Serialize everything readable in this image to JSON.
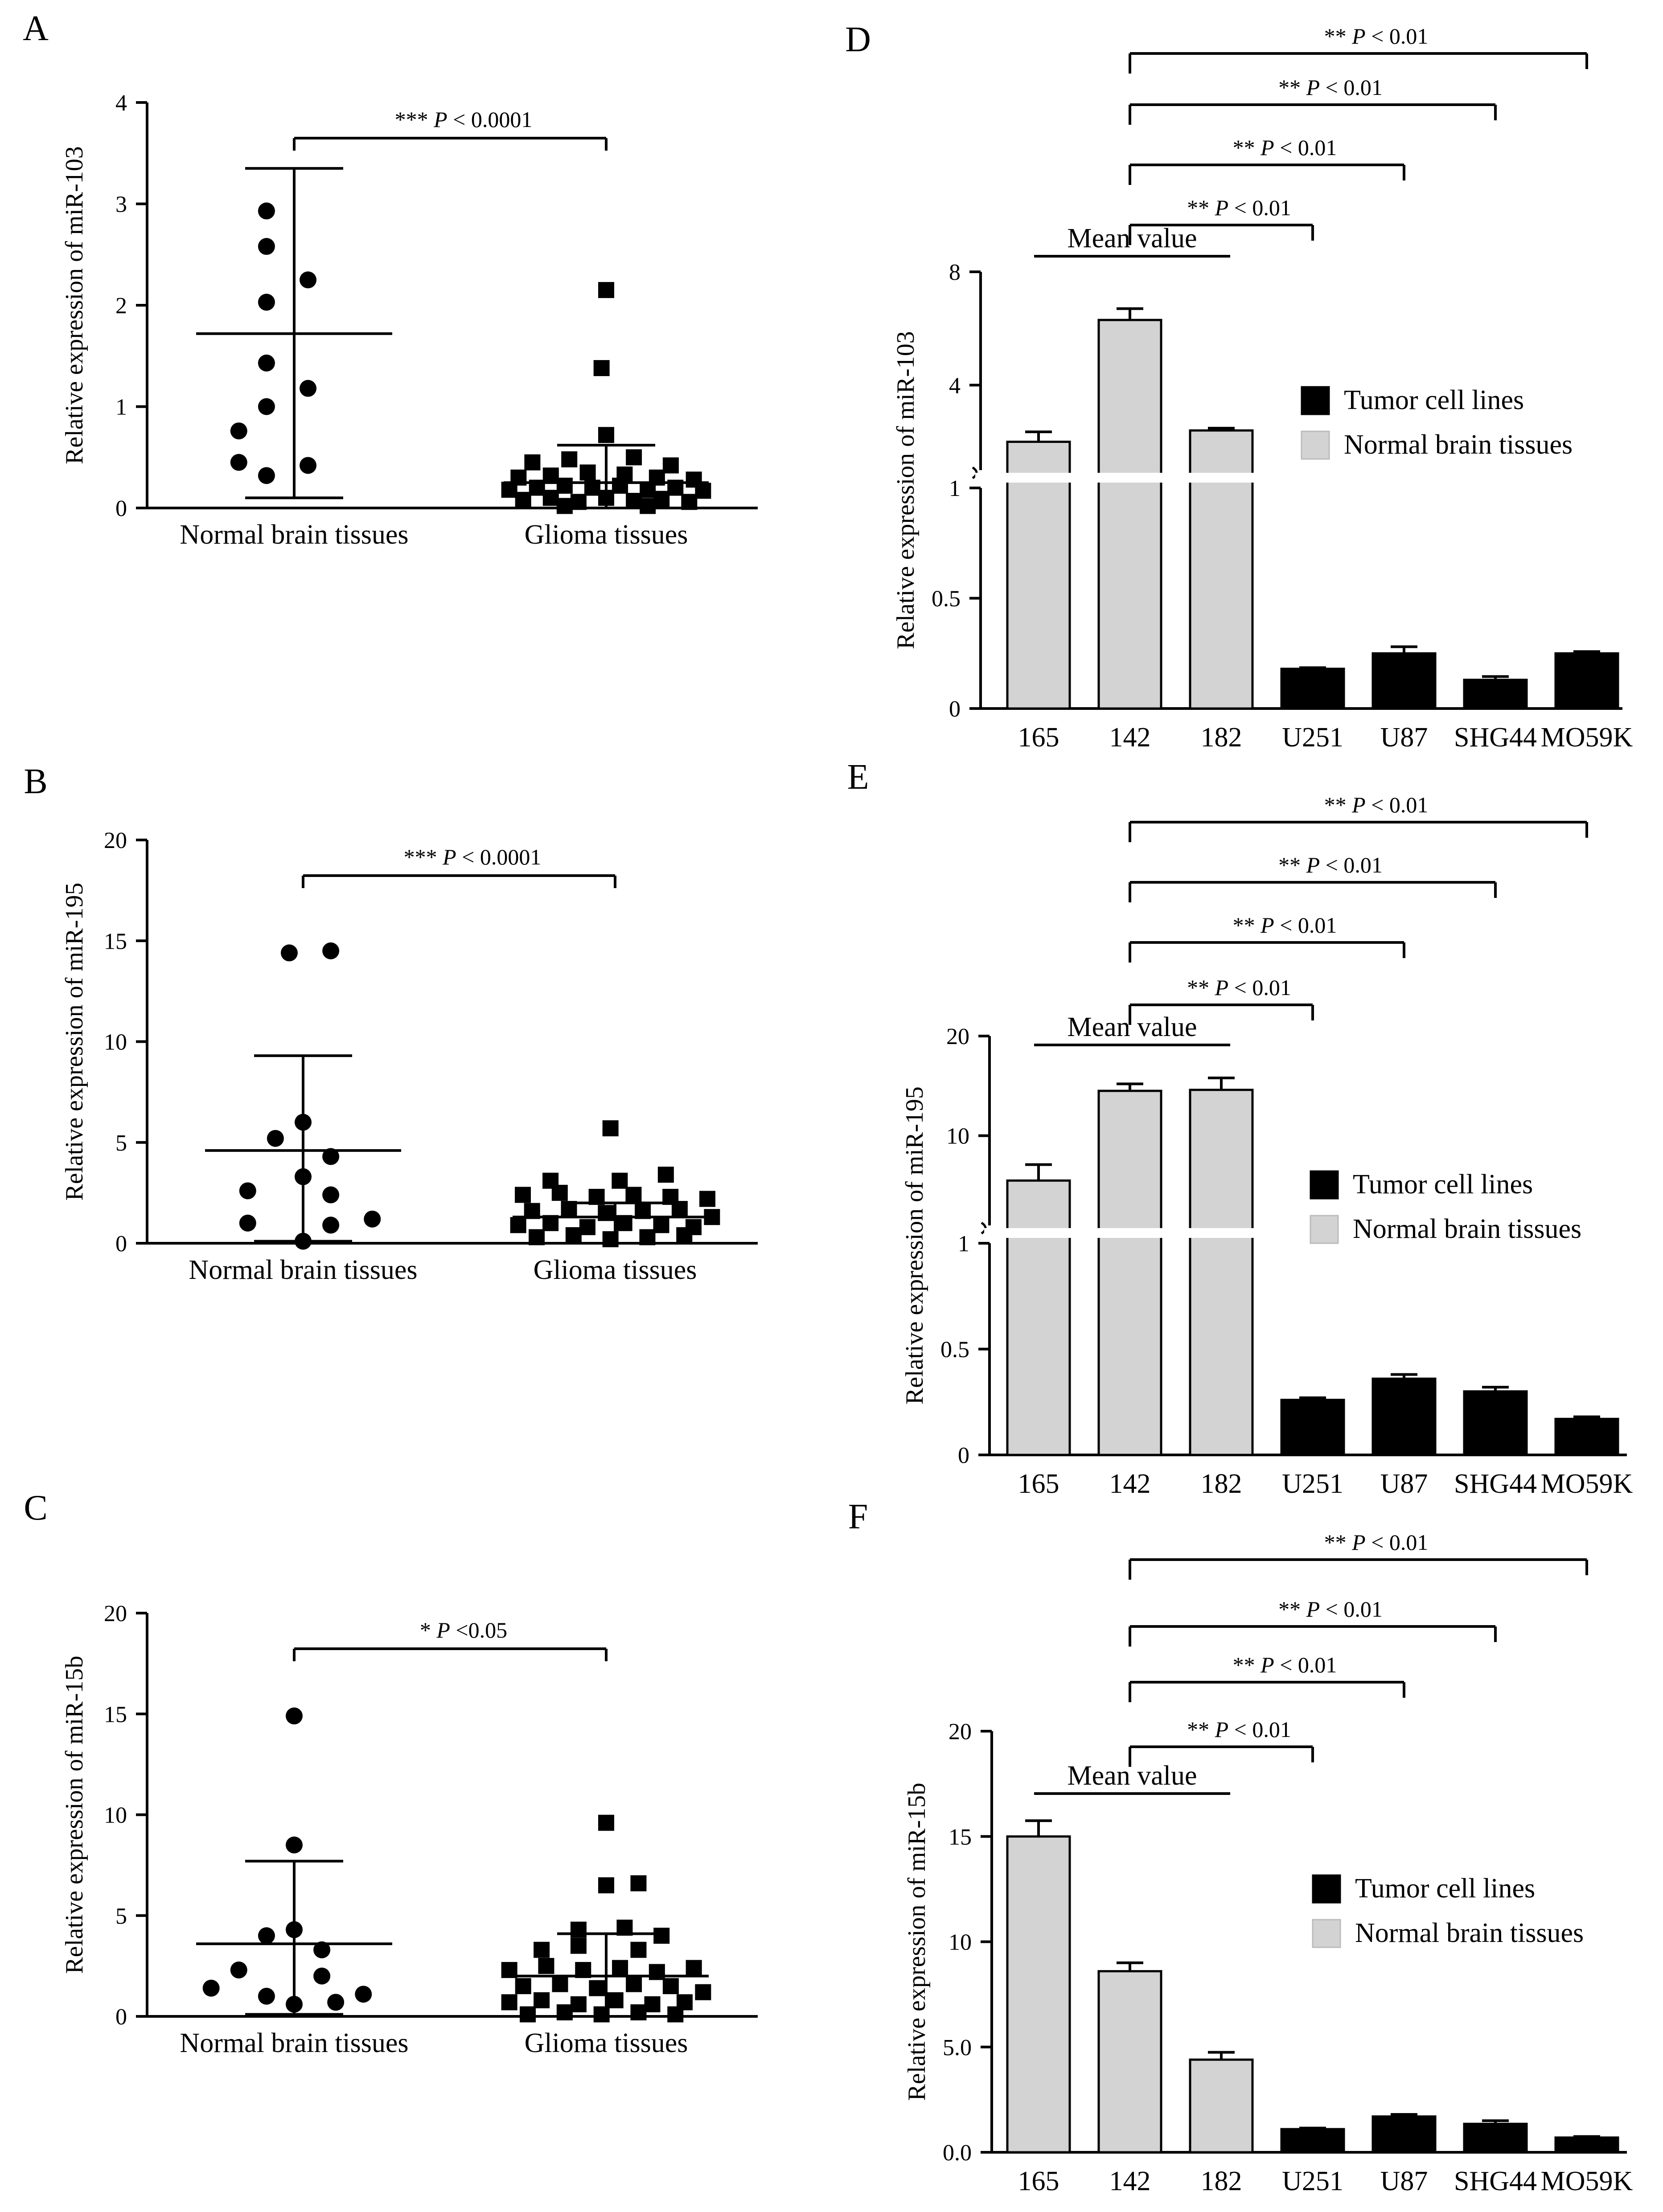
{
  "figure": {
    "colors": {
      "tumor": "#000000",
      "normal": "#d3d3d3",
      "stroke": "#000000"
    }
  },
  "chart_data": [
    {
      "id": "A",
      "panel_label": "A",
      "type": "scatter",
      "ylabel": "Relative expression of miR-103",
      "ylim": [
        0,
        4
      ],
      "yticks": [
        "0",
        "1",
        "2",
        "3",
        "4"
      ],
      "categories": [
        "Normal brain tissues",
        "Glioma tissues"
      ],
      "annotation": {
        "stars": "***",
        "p": "P",
        "cmp": "< 0.0001"
      },
      "groups": [
        {
          "marker": "circle",
          "mean": 1.72,
          "upper": 3.35,
          "lower": 0.1,
          "points": [
            [
              -0.3,
              2.93
            ],
            [
              -0.3,
              2.58
            ],
            [
              0.15,
              2.25
            ],
            [
              -0.3,
              2.03
            ],
            [
              -0.3,
              1.43
            ],
            [
              0.15,
              1.18
            ],
            [
              -0.3,
              1.0
            ],
            [
              -0.6,
              0.76
            ],
            [
              -0.6,
              0.45
            ],
            [
              0.15,
              0.42
            ],
            [
              -0.3,
              0.32
            ]
          ]
        },
        {
          "marker": "square",
          "mean": 0.25,
          "upper": 0.62,
          "lower": 0.0,
          "points": [
            [
              0.0,
              2.15
            ],
            [
              -0.05,
              1.38
            ],
            [
              0.0,
              0.72
            ],
            [
              -0.8,
              0.45
            ],
            [
              -0.4,
              0.48
            ],
            [
              0.3,
              0.5
            ],
            [
              0.7,
              0.42
            ],
            [
              -0.95,
              0.3
            ],
            [
              -0.6,
              0.32
            ],
            [
              -0.2,
              0.35
            ],
            [
              0.2,
              0.33
            ],
            [
              0.55,
              0.3
            ],
            [
              0.95,
              0.28
            ],
            [
              -1.05,
              0.18
            ],
            [
              -0.75,
              0.2
            ],
            [
              -0.45,
              0.22
            ],
            [
              -0.15,
              0.2
            ],
            [
              0.15,
              0.22
            ],
            [
              0.45,
              0.18
            ],
            [
              0.75,
              0.2
            ],
            [
              1.05,
              0.17
            ],
            [
              -0.9,
              0.08
            ],
            [
              -0.6,
              0.1
            ],
            [
              -0.3,
              0.06
            ],
            [
              0.0,
              0.1
            ],
            [
              0.3,
              0.07
            ],
            [
              0.6,
              0.09
            ],
            [
              0.9,
              0.06
            ],
            [
              -0.45,
              0.02
            ],
            [
              0.45,
              0.02
            ]
          ]
        }
      ]
    },
    {
      "id": "B",
      "panel_label": "B",
      "type": "scatter",
      "ylabel": "Relative expression of miR-195",
      "ylim": [
        0,
        20
      ],
      "yticks": [
        "0",
        "5",
        "10",
        "15",
        "20"
      ],
      "categories": [
        "Normal brain tissues",
        "Glioma tissues"
      ],
      "annotation": {
        "stars": "***",
        "p": "P",
        "cmp": "< 0.0001"
      },
      "groups": [
        {
          "marker": "circle",
          "mean": 4.6,
          "upper": 9.3,
          "lower": 0.1,
          "points": [
            [
              -0.15,
              14.4
            ],
            [
              0.3,
              14.5
            ],
            [
              0.0,
              6.0
            ],
            [
              -0.3,
              5.2
            ],
            [
              0.3,
              4.3
            ],
            [
              0.0,
              3.3
            ],
            [
              -0.6,
              2.6
            ],
            [
              0.3,
              2.4
            ],
            [
              -0.6,
              1.0
            ],
            [
              0.3,
              0.9
            ],
            [
              0.75,
              1.2
            ],
            [
              0.0,
              0.1
            ]
          ]
        },
        {
          "marker": "square",
          "mean": 1.3,
          "upper": 2.0,
          "lower": 0.0,
          "points": [
            [
              -0.05,
              5.7
            ],
            [
              -0.7,
              3.1
            ],
            [
              0.05,
              3.1
            ],
            [
              0.55,
              3.4
            ],
            [
              -1.0,
              2.4
            ],
            [
              -0.6,
              2.5
            ],
            [
              -0.2,
              2.3
            ],
            [
              0.2,
              2.4
            ],
            [
              0.6,
              2.3
            ],
            [
              1.0,
              2.2
            ],
            [
              -0.9,
              1.6
            ],
            [
              -0.5,
              1.7
            ],
            [
              -0.1,
              1.5
            ],
            [
              0.3,
              1.6
            ],
            [
              0.7,
              1.7
            ],
            [
              1.05,
              1.3
            ],
            [
              -1.05,
              0.9
            ],
            [
              -0.7,
              1.0
            ],
            [
              -0.3,
              0.8
            ],
            [
              0.1,
              1.0
            ],
            [
              0.5,
              0.9
            ],
            [
              0.85,
              0.8
            ],
            [
              -0.85,
              0.3
            ],
            [
              -0.45,
              0.4
            ],
            [
              -0.05,
              0.2
            ],
            [
              0.35,
              0.3
            ],
            [
              0.75,
              0.4
            ]
          ]
        }
      ]
    },
    {
      "id": "C",
      "panel_label": "C",
      "type": "scatter",
      "ylabel": "Relative expression of miR-15b",
      "ylim": [
        0,
        20
      ],
      "yticks": [
        "0",
        "5",
        "10",
        "15",
        "20"
      ],
      "categories": [
        "Normal brain tissues",
        "Glioma tissues"
      ],
      "annotation": {
        "stars": "*",
        "p": "P",
        "cmp": "<0.05"
      },
      "groups": [
        {
          "marker": "circle",
          "mean": 3.6,
          "upper": 7.7,
          "lower": 0.1,
          "points": [
            [
              0.0,
              14.9
            ],
            [
              0.0,
              8.5
            ],
            [
              -0.3,
              4.0
            ],
            [
              0.0,
              4.3
            ],
            [
              0.3,
              3.3
            ],
            [
              -0.6,
              2.3
            ],
            [
              0.3,
              2.0
            ],
            [
              -0.3,
              1.0
            ],
            [
              0.75,
              1.1
            ],
            [
              -0.9,
              1.4
            ],
            [
              0.0,
              0.6
            ],
            [
              0.45,
              0.7
            ]
          ]
        },
        {
          "marker": "square",
          "mean": 2.0,
          "upper": 4.1,
          "lower": 0.0,
          "points": [
            [
              0.0,
              9.6
            ],
            [
              0.0,
              6.5
            ],
            [
              0.35,
              6.6
            ],
            [
              -0.3,
              4.3
            ],
            [
              0.2,
              4.4
            ],
            [
              0.6,
              4.0
            ],
            [
              -0.7,
              3.3
            ],
            [
              -0.3,
              3.5
            ],
            [
              0.35,
              3.3
            ],
            [
              -1.05,
              2.3
            ],
            [
              -0.65,
              2.5
            ],
            [
              -0.25,
              2.3
            ],
            [
              0.15,
              2.4
            ],
            [
              0.55,
              2.2
            ],
            [
              0.95,
              2.4
            ],
            [
              -0.9,
              1.5
            ],
            [
              -0.5,
              1.6
            ],
            [
              -0.1,
              1.4
            ],
            [
              0.3,
              1.6
            ],
            [
              0.7,
              1.5
            ],
            [
              1.05,
              1.2
            ],
            [
              -1.05,
              0.7
            ],
            [
              -0.7,
              0.8
            ],
            [
              -0.3,
              0.6
            ],
            [
              0.1,
              0.8
            ],
            [
              0.5,
              0.6
            ],
            [
              0.85,
              0.7
            ],
            [
              -0.85,
              0.1
            ],
            [
              -0.45,
              0.2
            ],
            [
              -0.05,
              0.1
            ],
            [
              0.35,
              0.2
            ],
            [
              0.75,
              0.1
            ]
          ]
        }
      ]
    },
    {
      "id": "D",
      "panel_label": "D",
      "type": "bar",
      "ylabel": "Relative expression of miR-103",
      "categories": [
        "165",
        "142",
        "182",
        "U251",
        "U87",
        "SHG44",
        "MO59K"
      ],
      "values": [
        2.0,
        6.3,
        2.4,
        0.18,
        0.25,
        0.13,
        0.25
      ],
      "errors": [
        0.35,
        0.4,
        0.08,
        0.005,
        0.03,
        0.015,
        0.008
      ],
      "groups": [
        "normal",
        "normal",
        "normal",
        "tumor",
        "tumor",
        "tumor",
        "tumor"
      ],
      "axis_break": {
        "lower": {
          "max": 1,
          "ticks": [
            "0",
            "0.5",
            "1"
          ]
        },
        "upper": {
          "ticks": [
            "4",
            "8"
          ]
        }
      },
      "mean_value_label": "Mean value",
      "legend": [
        "Tumor cell lines",
        "Normal brain tissues"
      ],
      "comparisons": [
        {
          "to": "U251",
          "stars": "**",
          "p": "P",
          "cmp": "< 0.01"
        },
        {
          "to": "U87",
          "stars": "**",
          "p": "P",
          "cmp": "< 0.01"
        },
        {
          "to": "SHG44",
          "stars": "**",
          "p": "P",
          "cmp": "< 0.01"
        },
        {
          "to": "MO59K",
          "stars": "**",
          "p": "P",
          "cmp": "< 0.01"
        }
      ]
    },
    {
      "id": "E",
      "panel_label": "E",
      "type": "bar",
      "ylabel": "Relative expression of miR-195",
      "categories": [
        "165",
        "142",
        "182",
        "U251",
        "U87",
        "SHG44",
        "MO59K"
      ],
      "values": [
        5.5,
        14.5,
        14.6,
        0.26,
        0.36,
        0.3,
        0.17
      ],
      "errors": [
        1.6,
        0.7,
        1.2,
        0.01,
        0.02,
        0.02,
        0.01
      ],
      "groups": [
        "normal",
        "normal",
        "normal",
        "tumor",
        "tumor",
        "tumor",
        "tumor"
      ],
      "axis_break": {
        "lower": {
          "max": 1,
          "ticks": [
            "0",
            "0.5",
            "1"
          ]
        },
        "upper": {
          "ticks": [
            "10",
            "20"
          ]
        }
      },
      "mean_value_label": "Mean value",
      "legend": [
        "Tumor cell lines",
        "Normal brain tissues"
      ],
      "comparisons": [
        {
          "to": "U251",
          "stars": "**",
          "p": "P",
          "cmp": "< 0.01"
        },
        {
          "to": "U87",
          "stars": "**",
          "p": "P",
          "cmp": "< 0.01"
        },
        {
          "to": "SHG44",
          "stars": "**",
          "p": "P",
          "cmp": "< 0.01"
        },
        {
          "to": "MO59K",
          "stars": "**",
          "p": "P",
          "cmp": "< 0.01"
        }
      ]
    },
    {
      "id": "F",
      "panel_label": "F",
      "type": "bar",
      "ylabel": "Relative expression of miR-15b",
      "categories": [
        "165",
        "142",
        "182",
        "U251",
        "U87",
        "SHG44",
        "MO59K"
      ],
      "values": [
        15.0,
        8.6,
        4.4,
        1.1,
        1.7,
        1.35,
        0.7
      ],
      "errors": [
        0.75,
        0.4,
        0.35,
        0.05,
        0.1,
        0.15,
        0.05
      ],
      "groups": [
        "normal",
        "normal",
        "normal",
        "tumor",
        "tumor",
        "tumor",
        "tumor"
      ],
      "ylim": [
        0,
        20
      ],
      "yticks": [
        "0.0",
        "5.0",
        "10",
        "15",
        "20"
      ],
      "mean_value_label": "Mean value",
      "legend": [
        "Tumor cell lines",
        "Normal brain tissues"
      ],
      "comparisons": [
        {
          "to": "U251",
          "stars": "**",
          "p": "P",
          "cmp": "< 0.01"
        },
        {
          "to": "U87",
          "stars": "**",
          "p": "P",
          "cmp": "< 0.01"
        },
        {
          "to": "SHG44",
          "stars": "**",
          "p": "P",
          "cmp": "< 0.01"
        },
        {
          "to": "MO59K",
          "stars": "**",
          "p": "P",
          "cmp": "< 0.01"
        }
      ]
    }
  ]
}
